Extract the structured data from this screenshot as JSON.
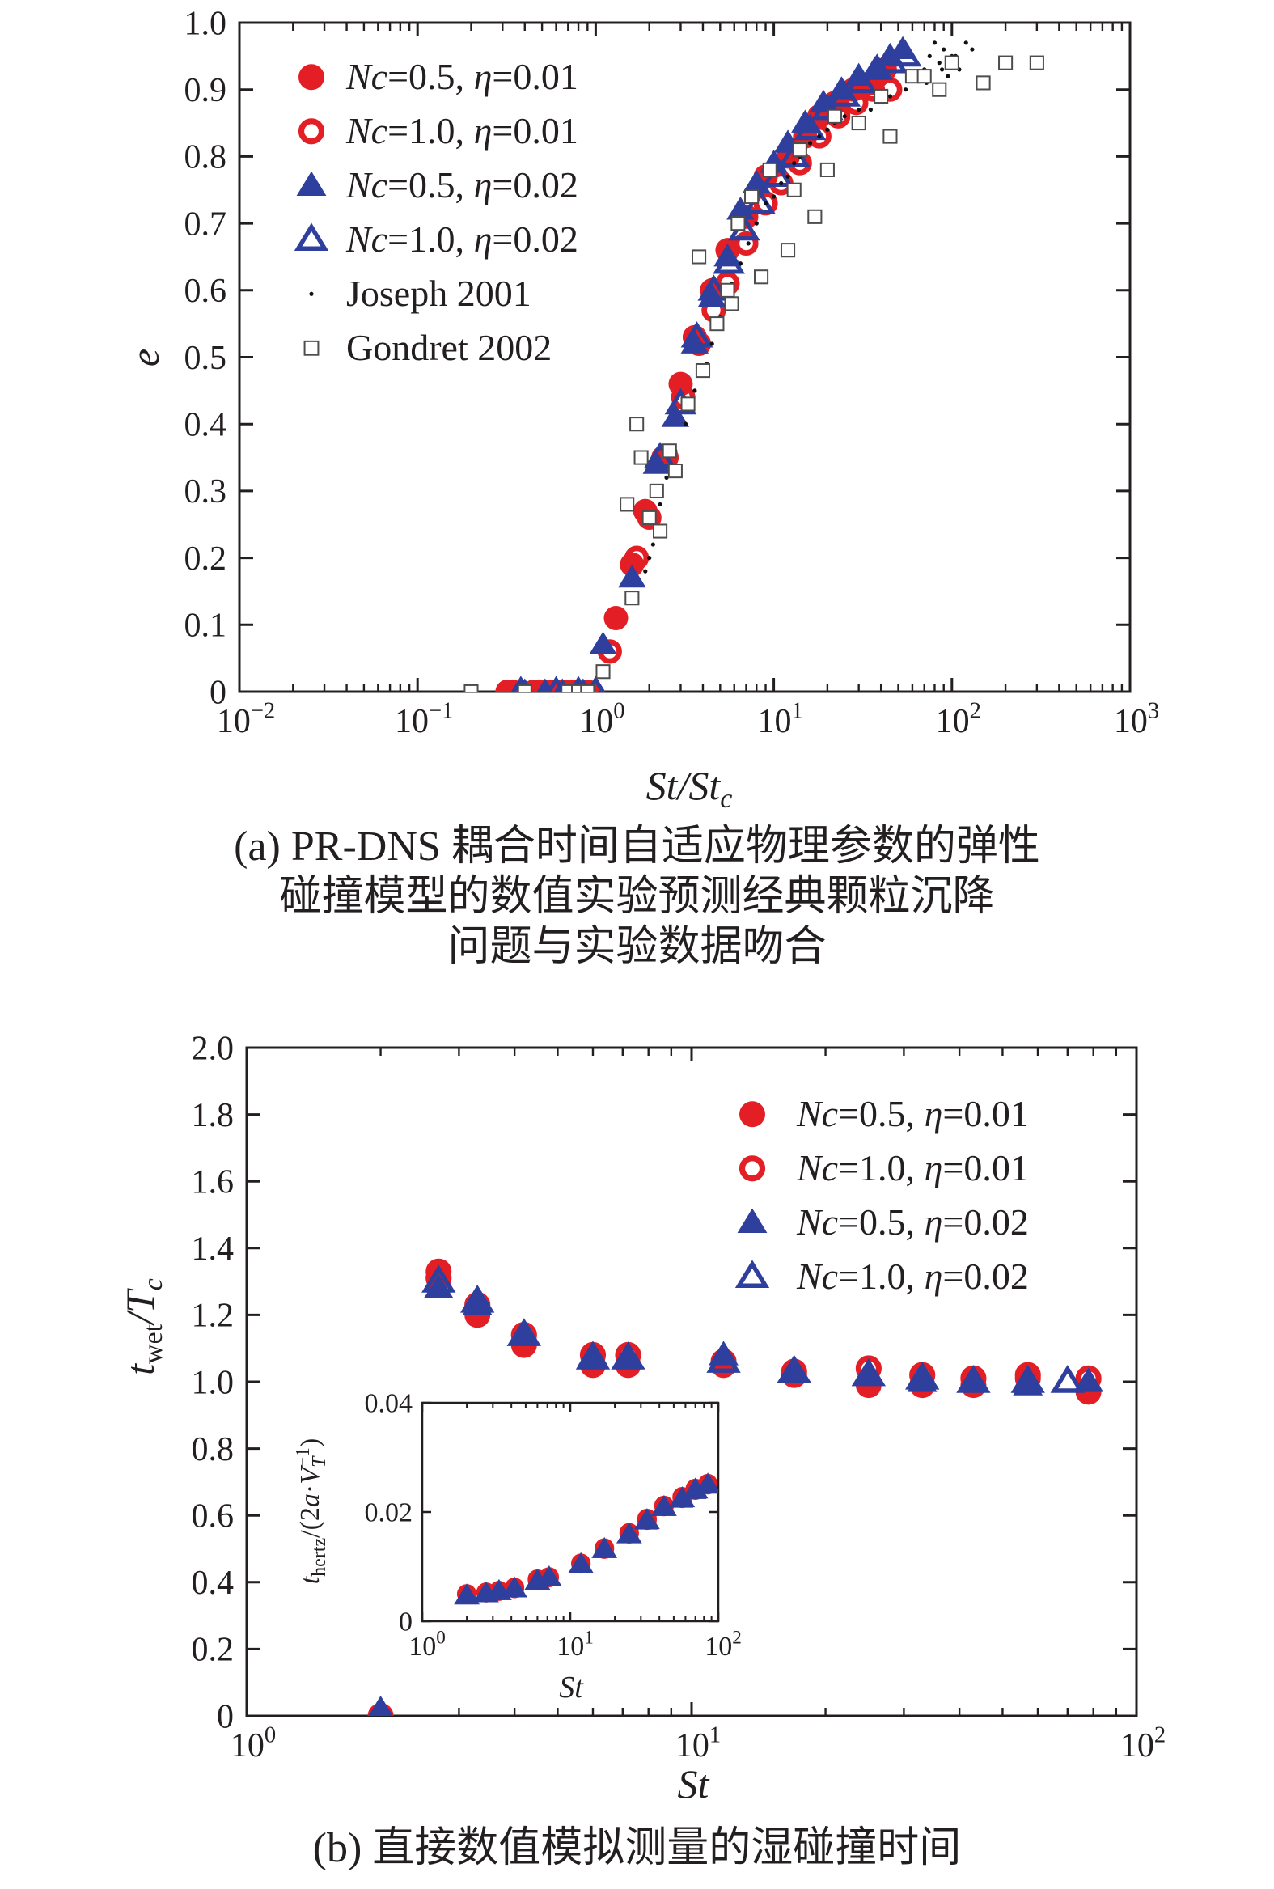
{
  "figure": {
    "caption_a": [
      "(a) PR-DNS 耦合时间自适应物理参数的弹性",
      "碰撞模型的数值实验预测经典颗粒沉降",
      "问题与实验数据吻合"
    ],
    "caption_b": "(b) 直接数值模拟测量的湿碰撞时间"
  },
  "colors": {
    "red": "#e31e25",
    "blue": "#2e3f9e",
    "black": "#111111",
    "grey": "#4d4d4d",
    "axis": "#231f20"
  },
  "chart_data": [
    {
      "id": "a",
      "type": "scatter",
      "title": "",
      "xlabel_base": "St/St",
      "xlabel_sub": "c",
      "ylabel": "e",
      "xscale": "log",
      "xlim": [
        0.01,
        1000
      ],
      "ylim": [
        0,
        1.0
      ],
      "xticks": [
        0.01,
        0.1,
        1,
        10,
        100,
        1000
      ],
      "xtick_labels": [
        {
          "base": "10",
          "exp": "−2"
        },
        {
          "base": "10",
          "exp": "−1"
        },
        {
          "base": "10",
          "exp": "0"
        },
        {
          "base": "10",
          "exp": "1"
        },
        {
          "base": "10",
          "exp": "2"
        },
        {
          "base": "10",
          "exp": "3"
        }
      ],
      "yticks": [
        0,
        0.1,
        0.2,
        0.3,
        0.4,
        0.5,
        0.6,
        0.7,
        0.8,
        0.9,
        1.0
      ],
      "ytick_labels": [
        "0",
        "0.1",
        "0.2",
        "0.3",
        "0.4",
        "0.5",
        "0.6",
        "0.7",
        "0.8",
        "0.9",
        "1.0"
      ],
      "legend_position": "top-left",
      "series": [
        {
          "name": "Nc=0.5, η=0.01",
          "label": {
            "nc": "Nc",
            "nc_val": "=0.5, ",
            "eta": "η",
            "eta_val": "=0.01"
          },
          "marker": "circle-filled",
          "color": "red",
          "x": [
            0.32,
            0.45,
            0.55,
            0.7,
            0.9,
            1.3,
            1.6,
            1.9,
            2.4,
            3.0,
            3.6,
            4.5,
            5.5,
            7,
            9,
            12,
            15,
            18,
            22,
            28,
            35,
            42
          ],
          "y": [
            0,
            0,
            0,
            0,
            0,
            0.11,
            0.19,
            0.27,
            0.35,
            0.46,
            0.53,
            0.6,
            0.66,
            0.71,
            0.77,
            0.8,
            0.83,
            0.86,
            0.88,
            0.9,
            0.91,
            0.93
          ]
        },
        {
          "name": "Nc=1.0, η=0.01",
          "label": {
            "nc": "Nc",
            "nc_val": "=1.0, ",
            "eta": "η",
            "eta_val": "=0.01"
          },
          "marker": "circle-open",
          "color": "red",
          "x": [
            0.34,
            0.48,
            0.6,
            0.75,
            1.2,
            1.7,
            2.0,
            2.5,
            3.1,
            3.8,
            4.6,
            5.5,
            7,
            9,
            11,
            14,
            18,
            23,
            29,
            36,
            45
          ],
          "y": [
            0,
            0,
            0,
            0,
            0.06,
            0.2,
            0.26,
            0.35,
            0.44,
            0.52,
            0.57,
            0.61,
            0.67,
            0.73,
            0.76,
            0.79,
            0.83,
            0.86,
            0.88,
            0.9,
            0.9
          ]
        },
        {
          "name": "Nc=0.5, η=0.02",
          "label": {
            "nc": "Nc",
            "nc_val": "=0.5, ",
            "eta": "η",
            "eta_val": "=0.02"
          },
          "marker": "triangle-filled",
          "color": "blue",
          "x": [
            0.4,
            0.52,
            0.65,
            0.85,
            1.1,
            1.6,
            2.2,
            2.8,
            3.6,
            4.5,
            5.5,
            6.5,
            8,
            10,
            12,
            15,
            19,
            24,
            30,
            37,
            45,
            53
          ],
          "y": [
            0,
            0,
            0,
            0,
            0.07,
            0.17,
            0.34,
            0.41,
            0.52,
            0.59,
            0.65,
            0.72,
            0.76,
            0.79,
            0.82,
            0.85,
            0.88,
            0.9,
            0.92,
            0.93,
            0.95,
            0.96
          ]
        },
        {
          "name": "Nc=1.0, η=0.02",
          "label": {
            "nc": "Nc",
            "nc_val": "=1.0, ",
            "eta": "η",
            "eta_val": "=0.02"
          },
          "marker": "triangle-open",
          "color": "blue",
          "x": [
            0.38,
            0.6,
            0.8,
            1.0,
            2.3,
            3.0,
            3.7,
            4.6,
            5.6,
            6.8,
            8.3,
            10.5,
            13,
            16,
            20,
            25,
            31,
            38,
            46,
            55
          ],
          "y": [
            0,
            0,
            0,
            0,
            0.35,
            0.43,
            0.53,
            0.6,
            0.64,
            0.69,
            0.73,
            0.77,
            0.8,
            0.84,
            0.87,
            0.89,
            0.91,
            0.93,
            0.94,
            0.95
          ]
        },
        {
          "name": "Joseph 2001",
          "label": {
            "text": "Joseph 2001"
          },
          "marker": "dot",
          "color": "black",
          "x": [
            1.9,
            2.0,
            2.1,
            2.3,
            2.5,
            2.8,
            3.2,
            3.6,
            4.2,
            4.5,
            5.0,
            5.8,
            6.5,
            7.2,
            8.0,
            9.0,
            10.0,
            11.0,
            12.0,
            13.0,
            14.0,
            15.0,
            16.0,
            18.0,
            20.0,
            22.0,
            25.0,
            30.0,
            35.0,
            45.0,
            55.0,
            62.0,
            70.0,
            75.0,
            80.0,
            85.0,
            90.0,
            95.0,
            100.0,
            110.0,
            120.0,
            130.0,
            72.0,
            88.0,
            105.0
          ],
          "y": [
            0.18,
            0.2,
            0.22,
            0.28,
            0.32,
            0.36,
            0.4,
            0.45,
            0.49,
            0.52,
            0.56,
            0.61,
            0.64,
            0.67,
            0.7,
            0.73,
            0.74,
            0.76,
            0.77,
            0.79,
            0.8,
            0.81,
            0.82,
            0.83,
            0.84,
            0.85,
            0.86,
            0.87,
            0.87,
            0.89,
            0.9,
            0.92,
            0.93,
            0.95,
            0.97,
            0.94,
            0.96,
            0.92,
            0.95,
            0.93,
            0.97,
            0.96,
            0.91,
            0.93,
            0.95
          ]
        },
        {
          "name": "Gondret 2002",
          "label": {
            "text": "Gondret 2002"
          },
          "marker": "square-open",
          "color": "grey",
          "x": [
            0.2,
            0.4,
            0.7,
            0.8,
            1.1,
            1.5,
            1.7,
            1.8,
            2.0,
            2.2,
            2.6,
            3.3,
            4.0,
            4.8,
            5.5,
            6.3,
            7.5,
            9.5,
            12.0,
            14.0,
            17.0,
            22.0,
            30.0,
            45.0,
            60.0,
            70.0,
            85.0,
            100.0,
            150.0,
            200.0,
            300.0,
            1.6,
            2.3,
            2.8,
            3.8,
            5.8,
            8.5,
            13.0,
            20.0,
            40.0,
            0.9
          ],
          "y": [
            0,
            0,
            0,
            0,
            0.03,
            0.28,
            0.4,
            0.35,
            0.26,
            0.3,
            0.36,
            0.43,
            0.48,
            0.55,
            0.6,
            0.7,
            0.74,
            0.78,
            0.66,
            0.81,
            0.71,
            0.86,
            0.85,
            0.83,
            0.92,
            0.92,
            0.9,
            0.94,
            0.91,
            0.94,
            0.94,
            0.14,
            0.24,
            0.33,
            0.65,
            0.58,
            0.62,
            0.75,
            0.78,
            0.89,
            0
          ]
        }
      ]
    },
    {
      "id": "b",
      "type": "scatter",
      "title": "",
      "xlabel": "St",
      "ylabel_base": "t",
      "ylabel_sub": "wet",
      "ylabel_tail": "/T",
      "ylabel_tail_sub": "c",
      "xscale": "log",
      "xlim": [
        1,
        100
      ],
      "ylim": [
        0,
        2.0
      ],
      "xticks": [
        1,
        10,
        100
      ],
      "xtick_labels": [
        {
          "base": "10",
          "exp": "0"
        },
        {
          "base": "10",
          "exp": "1"
        },
        {
          "base": "10",
          "exp": "2"
        }
      ],
      "yticks": [
        0,
        0.2,
        0.4,
        0.6,
        0.8,
        1.0,
        1.2,
        1.4,
        1.6,
        1.8,
        2.0
      ],
      "ytick_labels": [
        "0",
        "0.2",
        "0.4",
        "0.6",
        "0.8",
        "1.0",
        "1.2",
        "1.4",
        "1.6",
        "1.8",
        "2.0"
      ],
      "legend_position": "top-right",
      "series": [
        {
          "name": "Nc=0.5, η=0.01",
          "label": {
            "nc": "Nc",
            "nc_val": "=0.5, ",
            "eta": "η",
            "eta_val": "=0.01"
          },
          "marker": "circle-filled",
          "color": "red",
          "x": [
            2.0,
            2.7,
            3.3,
            4.2,
            6.0,
            7.2,
            11.8,
            17.0,
            25.0,
            33.0,
            43.0,
            57.0,
            78.0
          ],
          "y": [
            0,
            1.33,
            1.2,
            1.11,
            1.05,
            1.05,
            1.05,
            1.02,
            0.99,
            0.99,
            0.99,
            1.01,
            0.97
          ]
        },
        {
          "name": "Nc=1.0, η=0.01",
          "label": {
            "nc": "Nc",
            "nc_val": "=1.0, ",
            "eta": "η",
            "eta_val": "=0.01"
          },
          "marker": "circle-open",
          "color": "red",
          "x": [
            2.7,
            3.3,
            4.2,
            6.0,
            7.2,
            11.8,
            17.0,
            25.0,
            33.0,
            43.0,
            57.0,
            78.0
          ],
          "y": [
            1.31,
            1.23,
            1.14,
            1.08,
            1.08,
            1.06,
            1.03,
            1.04,
            1.02,
            1.01,
            1.02,
            1.01
          ]
        },
        {
          "name": "Nc=0.5, η=0.02",
          "label": {
            "nc": "Nc",
            "nc_val": "=0.5, ",
            "eta": "η",
            "eta_val": "=0.02"
          },
          "marker": "triangle-filled",
          "color": "blue",
          "x": [
            2.0,
            2.7,
            3.3,
            4.2,
            6.0,
            7.2,
            11.8,
            17.0,
            25.0,
            33.0,
            43.0,
            57.0,
            78.0
          ],
          "y": [
            0.01,
            1.28,
            1.23,
            1.14,
            1.08,
            1.07,
            1.08,
            1.03,
            1.02,
            1.0,
            1.0,
            0.99,
            1.0
          ]
        },
        {
          "name": "Nc=1.0, η=0.02",
          "label": {
            "nc": "Nc",
            "nc_val": "=1.0, ",
            "eta": "η",
            "eta_val": "=0.02"
          },
          "marker": "triangle-open",
          "color": "blue",
          "x": [
            2.0,
            2.7,
            3.3,
            4.2,
            6.0,
            7.2,
            11.8,
            17.0,
            25.0,
            33.0,
            43.0,
            57.0,
            70.0
          ],
          "y": [
            0.01,
            1.3,
            1.24,
            1.14,
            1.07,
            1.07,
            1.06,
            1.03,
            1.02,
            1.01,
            1.0,
            1.0,
            1.0
          ]
        }
      ]
    },
    {
      "id": "b-inset",
      "type": "scatter",
      "title": "",
      "xlabel": "St",
      "ylabel": {
        "t": "t",
        "hertz": "hertz",
        "mid": "/(2",
        "a": "a",
        "dot": "·",
        "V": "V",
        "T": "T",
        "neg1": "−1",
        "close": ")"
      },
      "xscale": "log",
      "xlim": [
        1,
        100
      ],
      "ylim": [
        0,
        0.04
      ],
      "xticks": [
        1,
        10,
        100
      ],
      "xtick_labels": [
        {
          "base": "10",
          "exp": "0"
        },
        {
          "base": "10",
          "exp": "1"
        },
        {
          "base": "10",
          "exp": "2"
        }
      ],
      "yticks": [
        0,
        0.02,
        0.04
      ],
      "ytick_labels": [
        "0",
        "0.02",
        "0.04"
      ],
      "series": [
        {
          "name": "Nc=0.5, η=0.01",
          "marker": "circle-filled",
          "color": "red",
          "x": [
            2.0,
            2.7,
            3.3,
            4.2,
            6.0,
            7.2,
            11.8,
            17.0,
            25.0,
            33.0,
            43.0,
            57.0,
            70.0,
            85.0
          ],
          "y": [
            0.005,
            0.0052,
            0.0055,
            0.006,
            0.0075,
            0.008,
            0.0105,
            0.0132,
            0.016,
            0.0185,
            0.021,
            0.0225,
            0.024,
            0.025
          ]
        },
        {
          "name": "Nc=1.0, η=0.01",
          "marker": "circle-open",
          "color": "red",
          "x": [
            2.0,
            2.7,
            3.3,
            4.2,
            6.0,
            7.2,
            11.8,
            17.0,
            25.0,
            33.0,
            43.0,
            57.0,
            70.0,
            85.0
          ],
          "y": [
            0.005,
            0.0053,
            0.0056,
            0.0062,
            0.0077,
            0.0081,
            0.0106,
            0.0134,
            0.0162,
            0.0188,
            0.0212,
            0.0228,
            0.0243,
            0.0252
          ]
        },
        {
          "name": "Nc=0.5, η=0.02",
          "marker": "triangle-filled",
          "color": "blue",
          "x": [
            2.0,
            2.7,
            3.3,
            4.2,
            6.0,
            7.2,
            11.8,
            17.0,
            25.0,
            33.0,
            43.0,
            57.0,
            70.0,
            85.0
          ],
          "y": [
            0.0045,
            0.0049,
            0.0053,
            0.0058,
            0.0072,
            0.0078,
            0.0102,
            0.013,
            0.0157,
            0.0182,
            0.0207,
            0.0222,
            0.0238,
            0.0248
          ]
        },
        {
          "name": "Nc=1.0, η=0.02",
          "marker": "triangle-open",
          "color": "blue",
          "x": [
            2.0,
            2.7,
            3.3,
            4.2,
            6.0,
            7.2,
            11.8,
            17.0,
            25.0,
            33.0,
            43.0,
            57.0,
            70.0,
            85.0
          ],
          "y": [
            0.0046,
            0.005,
            0.0054,
            0.0059,
            0.0073,
            0.0079,
            0.0103,
            0.0131,
            0.0158,
            0.0184,
            0.0208,
            0.0224,
            0.024,
            0.0249
          ]
        }
      ]
    }
  ]
}
